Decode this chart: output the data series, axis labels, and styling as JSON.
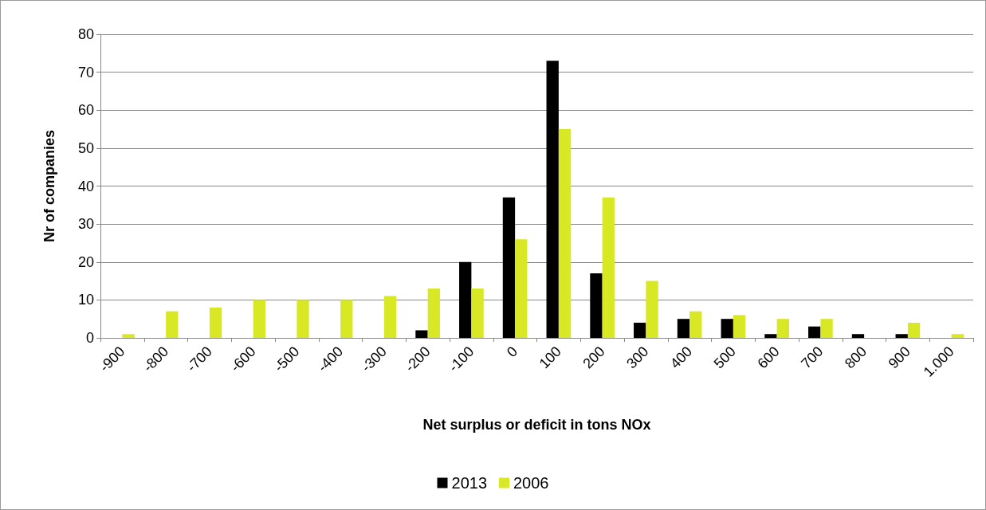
{
  "chart_data": {
    "type": "bar",
    "xlabel": "Net surplus or deficit in tons NOx",
    "ylabel": "Nr of companies",
    "categories": [
      "-900",
      "-800",
      "-700",
      "-600",
      "-500",
      "-400",
      "-300",
      "-200",
      "-100",
      "0",
      "100",
      "200",
      "300",
      "400",
      "500",
      "600",
      "700",
      "800",
      "900",
      "1.000"
    ],
    "series": [
      {
        "name": "2013",
        "color": "#000000",
        "values": [
          0,
          0,
          0,
          0,
          0,
          0,
          0,
          2,
          20,
          37,
          73,
          17,
          4,
          5,
          5,
          1,
          3,
          1,
          1,
          0
        ]
      },
      {
        "name": "2006",
        "color": "#d9e824",
        "values": [
          1,
          7,
          8,
          10,
          10,
          10,
          11,
          13,
          13,
          26,
          55,
          37,
          15,
          7,
          6,
          5,
          5,
          0,
          4,
          1
        ]
      }
    ],
    "ylim": [
      0,
      80
    ],
    "yticks": [
      0,
      10,
      20,
      30,
      40,
      50,
      60,
      70,
      80
    ],
    "grid": "y",
    "legend": "bottom"
  }
}
